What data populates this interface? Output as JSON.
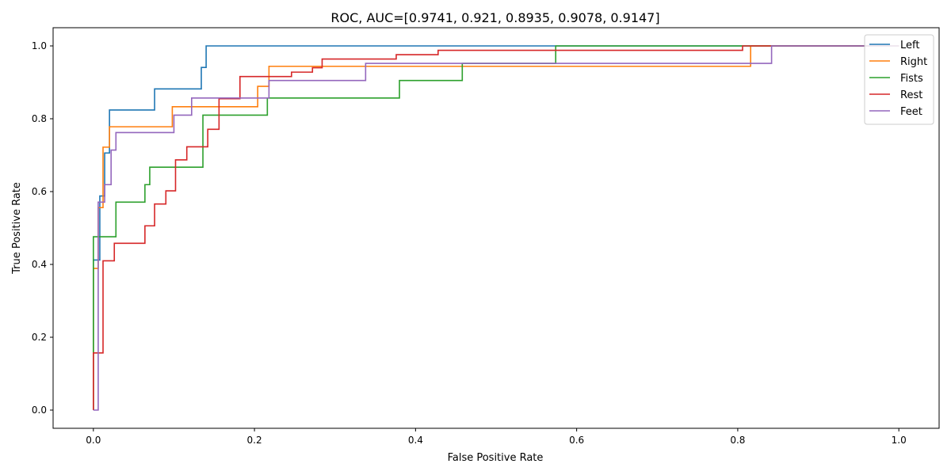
{
  "chart_data": {
    "type": "line",
    "title": "ROC, AUC=[0.9741, 0.921, 0.8935, 0.9078, 0.9147]",
    "xlabel": "False Positive Rate",
    "ylabel": "True Positive Rate",
    "xlim": [
      -0.05,
      1.05
    ],
    "ylim": [
      -0.05,
      1.05
    ],
    "xticks": [
      0.0,
      0.2,
      0.4,
      0.6,
      0.8,
      1.0
    ],
    "xtick_labels": [
      "0.0",
      "0.2",
      "0.4",
      "0.6",
      "0.8",
      "1.0"
    ],
    "yticks": [
      0.0,
      0.2,
      0.4,
      0.6,
      0.8,
      1.0
    ],
    "ytick_labels": [
      "0.0",
      "0.2",
      "0.4",
      "0.6",
      "0.8",
      "1.0"
    ],
    "grid": false,
    "legend_position": "top-right",
    "series": [
      {
        "name": "Left",
        "color": "#1f77b4",
        "points": [
          [
            0,
            0
          ],
          [
            0,
            0.412
          ],
          [
            0.008,
            0.412
          ],
          [
            0.008,
            0.588
          ],
          [
            0.014,
            0.588
          ],
          [
            0.014,
            0.706
          ],
          [
            0.02,
            0.706
          ],
          [
            0.02,
            0.824
          ],
          [
            0.076,
            0.824
          ],
          [
            0.076,
            0.882
          ],
          [
            0.134,
            0.882
          ],
          [
            0.134,
            0.941
          ],
          [
            0.14,
            0.941
          ],
          [
            0.14,
            1.0
          ],
          [
            1.0,
            1.0
          ]
        ]
      },
      {
        "name": "Right",
        "color": "#ff7f0e",
        "points": [
          [
            0,
            0
          ],
          [
            0,
            0.389
          ],
          [
            0.006,
            0.389
          ],
          [
            0.006,
            0.556
          ],
          [
            0.012,
            0.556
          ],
          [
            0.012,
            0.722
          ],
          [
            0.02,
            0.722
          ],
          [
            0.02,
            0.778
          ],
          [
            0.098,
            0.778
          ],
          [
            0.098,
            0.833
          ],
          [
            0.204,
            0.833
          ],
          [
            0.204,
            0.889
          ],
          [
            0.218,
            0.889
          ],
          [
            0.218,
            0.944
          ],
          [
            0.816,
            0.944
          ],
          [
            0.816,
            1.0
          ],
          [
            1.0,
            1.0
          ]
        ]
      },
      {
        "name": "Fists",
        "color": "#2ca02c",
        "points": [
          [
            0,
            0
          ],
          [
            0,
            0.476
          ],
          [
            0.028,
            0.476
          ],
          [
            0.028,
            0.571
          ],
          [
            0.064,
            0.571
          ],
          [
            0.064,
            0.619
          ],
          [
            0.07,
            0.619
          ],
          [
            0.07,
            0.667
          ],
          [
            0.136,
            0.667
          ],
          [
            0.136,
            0.81
          ],
          [
            0.216,
            0.81
          ],
          [
            0.216,
            0.857
          ],
          [
            0.38,
            0.857
          ],
          [
            0.38,
            0.905
          ],
          [
            0.458,
            0.905
          ],
          [
            0.458,
            0.952
          ],
          [
            0.574,
            0.952
          ],
          [
            0.574,
            1.0
          ],
          [
            1.0,
            1.0
          ]
        ]
      },
      {
        "name": "Rest",
        "color": "#d62728",
        "points": [
          [
            0,
            0
          ],
          [
            0,
            0.157
          ],
          [
            0.012,
            0.157
          ],
          [
            0.012,
            0.41
          ],
          [
            0.026,
            0.41
          ],
          [
            0.026,
            0.458
          ],
          [
            0.064,
            0.458
          ],
          [
            0.064,
            0.506
          ],
          [
            0.076,
            0.506
          ],
          [
            0.076,
            0.566
          ],
          [
            0.09,
            0.566
          ],
          [
            0.09,
            0.602
          ],
          [
            0.102,
            0.602
          ],
          [
            0.102,
            0.687
          ],
          [
            0.116,
            0.687
          ],
          [
            0.116,
            0.723
          ],
          [
            0.142,
            0.723
          ],
          [
            0.142,
            0.771
          ],
          [
            0.156,
            0.771
          ],
          [
            0.156,
            0.855
          ],
          [
            0.182,
            0.855
          ],
          [
            0.182,
            0.916
          ],
          [
            0.246,
            0.916
          ],
          [
            0.246,
            0.928
          ],
          [
            0.272,
            0.928
          ],
          [
            0.272,
            0.94
          ],
          [
            0.284,
            0.94
          ],
          [
            0.284,
            0.964
          ],
          [
            0.376,
            0.964
          ],
          [
            0.376,
            0.976
          ],
          [
            0.428,
            0.976
          ],
          [
            0.428,
            0.988
          ],
          [
            0.806,
            0.988
          ],
          [
            0.806,
            1.0
          ],
          [
            1.0,
            1.0
          ]
        ]
      },
      {
        "name": "Feet",
        "color": "#9467bd",
        "points": [
          [
            0,
            0
          ],
          [
            0.006,
            0
          ],
          [
            0.006,
            0.571
          ],
          [
            0.014,
            0.571
          ],
          [
            0.014,
            0.619
          ],
          [
            0.022,
            0.619
          ],
          [
            0.022,
            0.714
          ],
          [
            0.028,
            0.714
          ],
          [
            0.028,
            0.762
          ],
          [
            0.1,
            0.762
          ],
          [
            0.1,
            0.81
          ],
          [
            0.122,
            0.81
          ],
          [
            0.122,
            0.857
          ],
          [
            0.218,
            0.857
          ],
          [
            0.218,
            0.905
          ],
          [
            0.338,
            0.905
          ],
          [
            0.338,
            0.952
          ],
          [
            0.842,
            0.952
          ],
          [
            0.842,
            1.0
          ],
          [
            1.0,
            1.0
          ]
        ]
      }
    ]
  }
}
